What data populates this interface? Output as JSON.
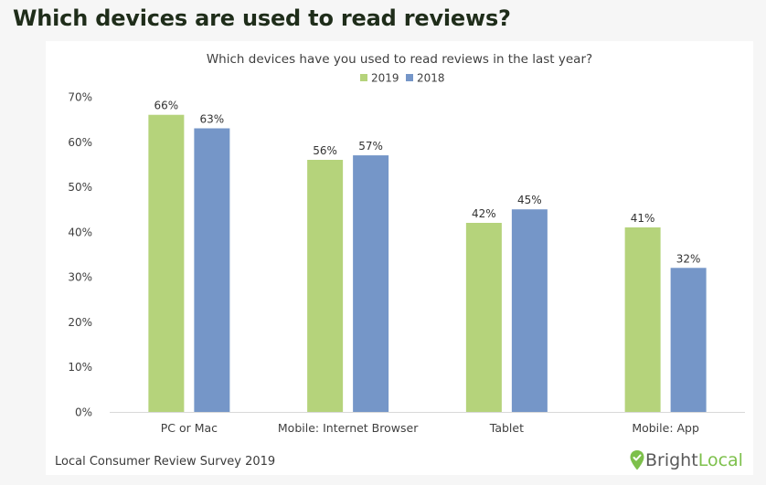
{
  "page": {
    "headline": "Which devices are used to read reviews?",
    "source": "Local Consumer Review Survey 2019",
    "brand": {
      "first": "Bright",
      "second": "Local"
    }
  },
  "colors": {
    "2019": "#b5d37b",
    "2018": "#7596c8",
    "headline": "#1f2d1a",
    "brand_green": "#7dc04b"
  },
  "chart_data": {
    "type": "bar",
    "title": "Which devices have you used to read reviews in the last year?",
    "categories": [
      "PC or Mac",
      "Mobile: Internet Browser",
      "Tablet",
      "Mobile: App"
    ],
    "series": [
      {
        "name": "2019",
        "values": [
          66,
          56,
          42,
          41
        ],
        "labels": [
          "66%",
          "56%",
          "42%",
          "41%"
        ]
      },
      {
        "name": "2018",
        "values": [
          63,
          57,
          45,
          32
        ],
        "labels": [
          "63%",
          "57%",
          "45%",
          "32%"
        ]
      }
    ],
    "xlabel": "",
    "ylabel": "",
    "ylim": [
      0,
      70
    ],
    "yticks": [
      "0%",
      "10%",
      "20%",
      "30%",
      "40%",
      "50%",
      "60%",
      "70%"
    ],
    "legend": "top-center",
    "grid": false
  }
}
